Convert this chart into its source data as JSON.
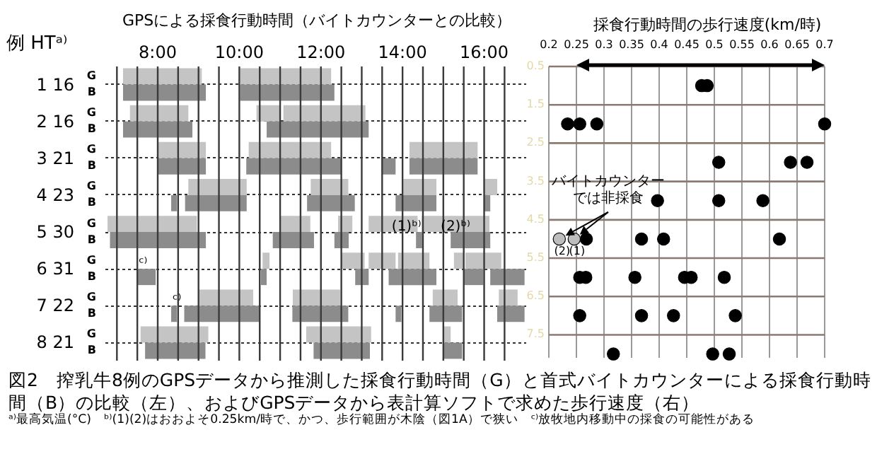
{
  "chart_data": [
    {
      "type": "bar",
      "orientation": "horizontal",
      "title": "GPSによる採食行動時間（バイトカウンターとの比較）",
      "ylabel": "例  HTᵃ⁾",
      "categories": [
        "1  16",
        "2  16",
        "3  21",
        "4  23",
        "5  30",
        "6  31",
        "7  22",
        "8  21"
      ],
      "xlim": [
        6.7,
        17.1
      ],
      "xticks": [
        {
          "value": 7,
          "label": null
        },
        {
          "value": 7.5,
          "label": null
        },
        {
          "value": 8,
          "label": "8:00"
        },
        {
          "value": 8.5,
          "label": null
        },
        {
          "value": 9,
          "label": null
        },
        {
          "value": 9.5,
          "label": null
        },
        {
          "value": 10,
          "label": "10:00"
        },
        {
          "value": 10.5,
          "label": null
        },
        {
          "value": 11,
          "label": null
        },
        {
          "value": 11.5,
          "label": null
        },
        {
          "value": 12,
          "label": "12:00"
        },
        {
          "value": 12.5,
          "label": null
        },
        {
          "value": 13,
          "label": null
        },
        {
          "value": 13.5,
          "label": null
        },
        {
          "value": 14,
          "label": "14:00"
        },
        {
          "value": 14.5,
          "label": null
        },
        {
          "value": 15,
          "label": null
        },
        {
          "value": 15.5,
          "label": null
        },
        {
          "value": 16,
          "label": "16:00"
        },
        {
          "value": 16.5,
          "label": null
        }
      ],
      "grid": true,
      "series": [
        {
          "name": "G",
          "color": "#c4c4c4",
          "base": [
            7.15,
            7.32,
            8.0,
            8.75,
            6.77,
            10.57,
            9.02,
            7.58
          ],
          "values": [
            1.93,
            1.43,
            1.18,
            1.43,
            2.19,
            0.17,
            1.32,
            1.66
          ]
        },
        {
          "color": "#c4c4c4",
          "base": [
            10.02,
            10.42,
            10.23,
            11.75,
            11.01,
            12.49,
            11.31,
            11.64
          ],
          "values": [
            2.23,
            0.58,
            2.02,
            0.92,
            0.73,
            0.58,
            1.16,
            1.59
          ]
        },
        {
          "color": "#c4c4c4",
          "base": [
            null,
            11.08,
            14.17,
            14.02,
            12.42,
            13.17,
            14.74,
            15.0
          ],
          "values": [
            null,
            2.01,
            1.67,
            0.81,
            0.35,
            0.66,
            0.61,
            0.18
          ]
        },
        {
          "color": "#c4c4c4",
          "base": [
            null,
            null,
            null,
            16.0,
            13.17,
            13.89,
            16.36,
            null
          ],
          "values": [
            null,
            null,
            null,
            0.32,
            1.2,
            0.77,
            0.46,
            null
          ]
        },
        {
          "color": "#c4c4c4",
          "base": [
            null,
            null,
            null,
            null,
            14.47,
            15.26,
            null,
            null
          ],
          "values": [
            null,
            null,
            null,
            null,
            1.66,
            0.24,
            null,
            null
          ]
        },
        {
          "color": "#c4c4c4",
          "base": [
            null,
            null,
            null,
            null,
            null,
            15.54,
            null,
            null
          ],
          "values": [
            null,
            null,
            null,
            null,
            null,
            0.88,
            null,
            null
          ]
        },
        {
          "name": "B",
          "color": "#8c8c8c",
          "base": [
            7.15,
            7.15,
            8.0,
            8.33,
            6.83,
            7.5,
            8.33,
            7.69
          ],
          "values": [
            2.03,
            1.7,
            1.18,
            0.14,
            2.35,
            0.45,
            0.14,
            1.48
          ]
        },
        {
          "color": "#8c8c8c",
          "base": [
            10.02,
            10.67,
            10.17,
            8.67,
            10.82,
            10.53,
            8.65,
            11.82
          ],
          "values": [
            2.31,
            2.5,
            2.32,
            1.51,
            1.01,
            0.14,
            1.84,
            1.38
          ]
        },
        {
          "color": "#8c8c8c",
          "base": [
            null,
            null,
            13.49,
            11.66,
            12.33,
            12.84,
            11.3,
            15.0
          ],
          "values": [
            null,
            null,
            0.34,
            1.17,
            0.35,
            0.33,
            1.37,
            0.46
          ]
        },
        {
          "color": "#8c8c8c",
          "base": [
            null,
            null,
            14.17,
            13.83,
            14.33,
            13.66,
            13.83,
            null
          ],
          "values": [
            null,
            null,
            1.67,
            1.0,
            0.15,
            1.17,
            0.14,
            null
          ]
        },
        {
          "color": "#8c8c8c",
          "base": [
            null,
            null,
            null,
            16.0,
            15.18,
            15.5,
            14.66,
            null
          ],
          "values": [
            null,
            null,
            null,
            0.15,
            0.97,
            0.48,
            0.8,
            null
          ]
        },
        {
          "color": "#8c8c8c",
          "base": [
            null,
            null,
            null,
            null,
            null,
            16.15,
            16.32,
            null
          ],
          "values": [
            null,
            null,
            null,
            null,
            null,
            0.84,
            0.67,
            null
          ]
        }
      ],
      "annotations": [
        {
          "text": "(1)ᵇ⁾",
          "x": 13.7,
          "y": "5  30"
        },
        {
          "text": "(2)ᵇ⁾",
          "x": 14.9,
          "y": "5  30"
        },
        {
          "text": "ᶜ⁾",
          "x": 7.5,
          "y": "6  31"
        },
        {
          "text": "ᶜ⁾",
          "x": 8.33,
          "y": "7  22"
        },
        "図2　搾乳牛8例のGPSデータから推測した採食行動時間（G）と首式バイトカウンターによる採食行動時間（B）の比較（左）、およびGPSデータから表計算ソフトで求めた歩行速度（右）",
        "ᵃ⁾最高気温(°C)　ᵇ⁾(1)(2)はおおよそ0.25km/時で、かつ、歩行範囲が木陰（図1A）で狭い　ᶜ⁾放牧地内移動中の採食の可能性がある"
      ]
    },
    {
      "type": "scatter",
      "title": "採食行動時間の歩行速度(km/時)",
      "marker": "circle",
      "grid": true,
      "xlim": [
        0.2,
        0.7
      ],
      "xticks": [
        0.2,
        0.25,
        0.3,
        0.35,
        0.4,
        0.45,
        0.5,
        0.55,
        0.6,
        0.65,
        0.7
      ],
      "ylim": [
        8.1,
        0.5
      ],
      "yticks": [
        0.5,
        1.5,
        2.5,
        3.5,
        4.5,
        5.5,
        6.5,
        7.5
      ],
      "series": [
        {
          "color": "#000000",
          "x": [
            0.477,
            0.487,
            0.234,
            0.256,
            0.287,
            0.7,
            0.508,
            0.638,
            0.668,
            0.397,
            0.508,
            0.588,
            0.268,
            0.368,
            0.408,
            0.618,
            0.256,
            0.267,
            0.356,
            0.446,
            0.458,
            0.518,
            0.256,
            0.368,
            0.426,
            0.538,
            0.317,
            0.497,
            0.527
          ],
          "values": [
            1,
            1,
            2,
            2,
            2,
            2,
            3,
            3,
            3,
            4,
            4,
            4,
            5,
            5,
            5,
            5,
            6,
            6,
            6,
            6,
            6,
            6,
            7,
            7,
            7,
            7,
            8,
            8,
            8
          ]
        },
        {
          "color": "#bdbdbd",
          "x": [
            0.246,
            0.219
          ],
          "values": [
            5,
            5
          ]
        }
      ],
      "annotations": [
        {
          "text": "バイトカウンターでは非採食",
          "x": 0.246,
          "y": 5
        },
        {
          "text": "(1)",
          "x": 0.246,
          "y": 5
        },
        {
          "text": "(2)",
          "x": 0.219,
          "y": 5
        }
      ]
    }
  ]
}
